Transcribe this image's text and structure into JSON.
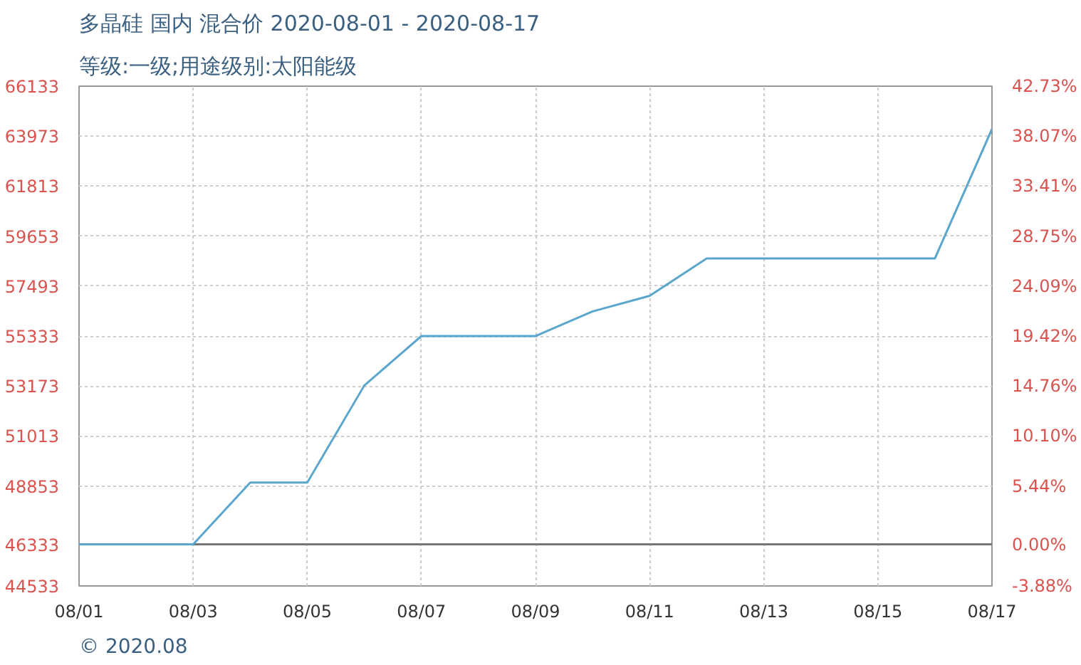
{
  "chart_data": {
    "type": "line",
    "title": "多晶硅 国内 混合价 2020-08-01 - 2020-08-17",
    "subtitle": "等级:一级;用途级别:太阳能级",
    "x": [
      "2020-08-01",
      "2020-08-02",
      "2020-08-03",
      "2020-08-04",
      "2020-08-05",
      "2020-08-06",
      "2020-08-07",
      "2020-08-08",
      "2020-08-09",
      "2020-08-10",
      "2020-08-11",
      "2020-08-12",
      "2020-08-13",
      "2020-08-14",
      "2020-08-15",
      "2020-08-16",
      "2020-08-17"
    ],
    "series": [
      {
        "color": "#5aa6cc",
        "values": [
          46333,
          46333,
          46333,
          49000,
          49000,
          53200,
          55333,
          55333,
          55333,
          56400,
          57070,
          58690,
          58690,
          58690,
          58690,
          58690,
          64280
        ]
      }
    ],
    "xlim": [
      "2020-08-01",
      "2020-08-17"
    ],
    "xticks": [
      {
        "value": "2020-08-01",
        "label": "08/01"
      },
      {
        "value": "2020-08-03",
        "label": "08/03"
      },
      {
        "value": "2020-08-05",
        "label": "08/05"
      },
      {
        "value": "2020-08-07",
        "label": "08/07"
      },
      {
        "value": "2020-08-09",
        "label": "08/09"
      },
      {
        "value": "2020-08-11",
        "label": "08/11"
      },
      {
        "value": "2020-08-13",
        "label": "08/13"
      },
      {
        "value": "2020-08-15",
        "label": "08/15"
      },
      {
        "value": "2020-08-17",
        "label": "08/17"
      }
    ],
    "ylim": [
      44533,
      66133
    ],
    "yticks": [
      44533,
      46333,
      48853,
      51013,
      53173,
      55333,
      57493,
      59653,
      61813,
      63973,
      66133
    ],
    "y2lim": [
      -3.88,
      42.73
    ],
    "y2ticks": [
      {
        "value": -3.88,
        "label": "-3.88%"
      },
      {
        "value": 0,
        "label": "0.00%"
      },
      {
        "value": 5.44,
        "label": "5.44%"
      },
      {
        "value": 10.1,
        "label": "10.10%"
      },
      {
        "value": 14.76,
        "label": "14.76%"
      },
      {
        "value": 19.42,
        "label": "19.42%"
      },
      {
        "value": 24.09,
        "label": "24.09%"
      },
      {
        "value": 28.75,
        "label": "28.75%"
      },
      {
        "value": 33.41,
        "label": "33.41%"
      },
      {
        "value": 38.07,
        "label": "38.07%"
      },
      {
        "value": 42.73,
        "label": "42.73%"
      }
    ],
    "ref_lines": [
      {
        "axis": "y",
        "value": 46333,
        "color": "#777777"
      }
    ],
    "grid": true,
    "line_style": "solid",
    "marker": "none",
    "annotations": [
      "© 2020.08"
    ]
  }
}
